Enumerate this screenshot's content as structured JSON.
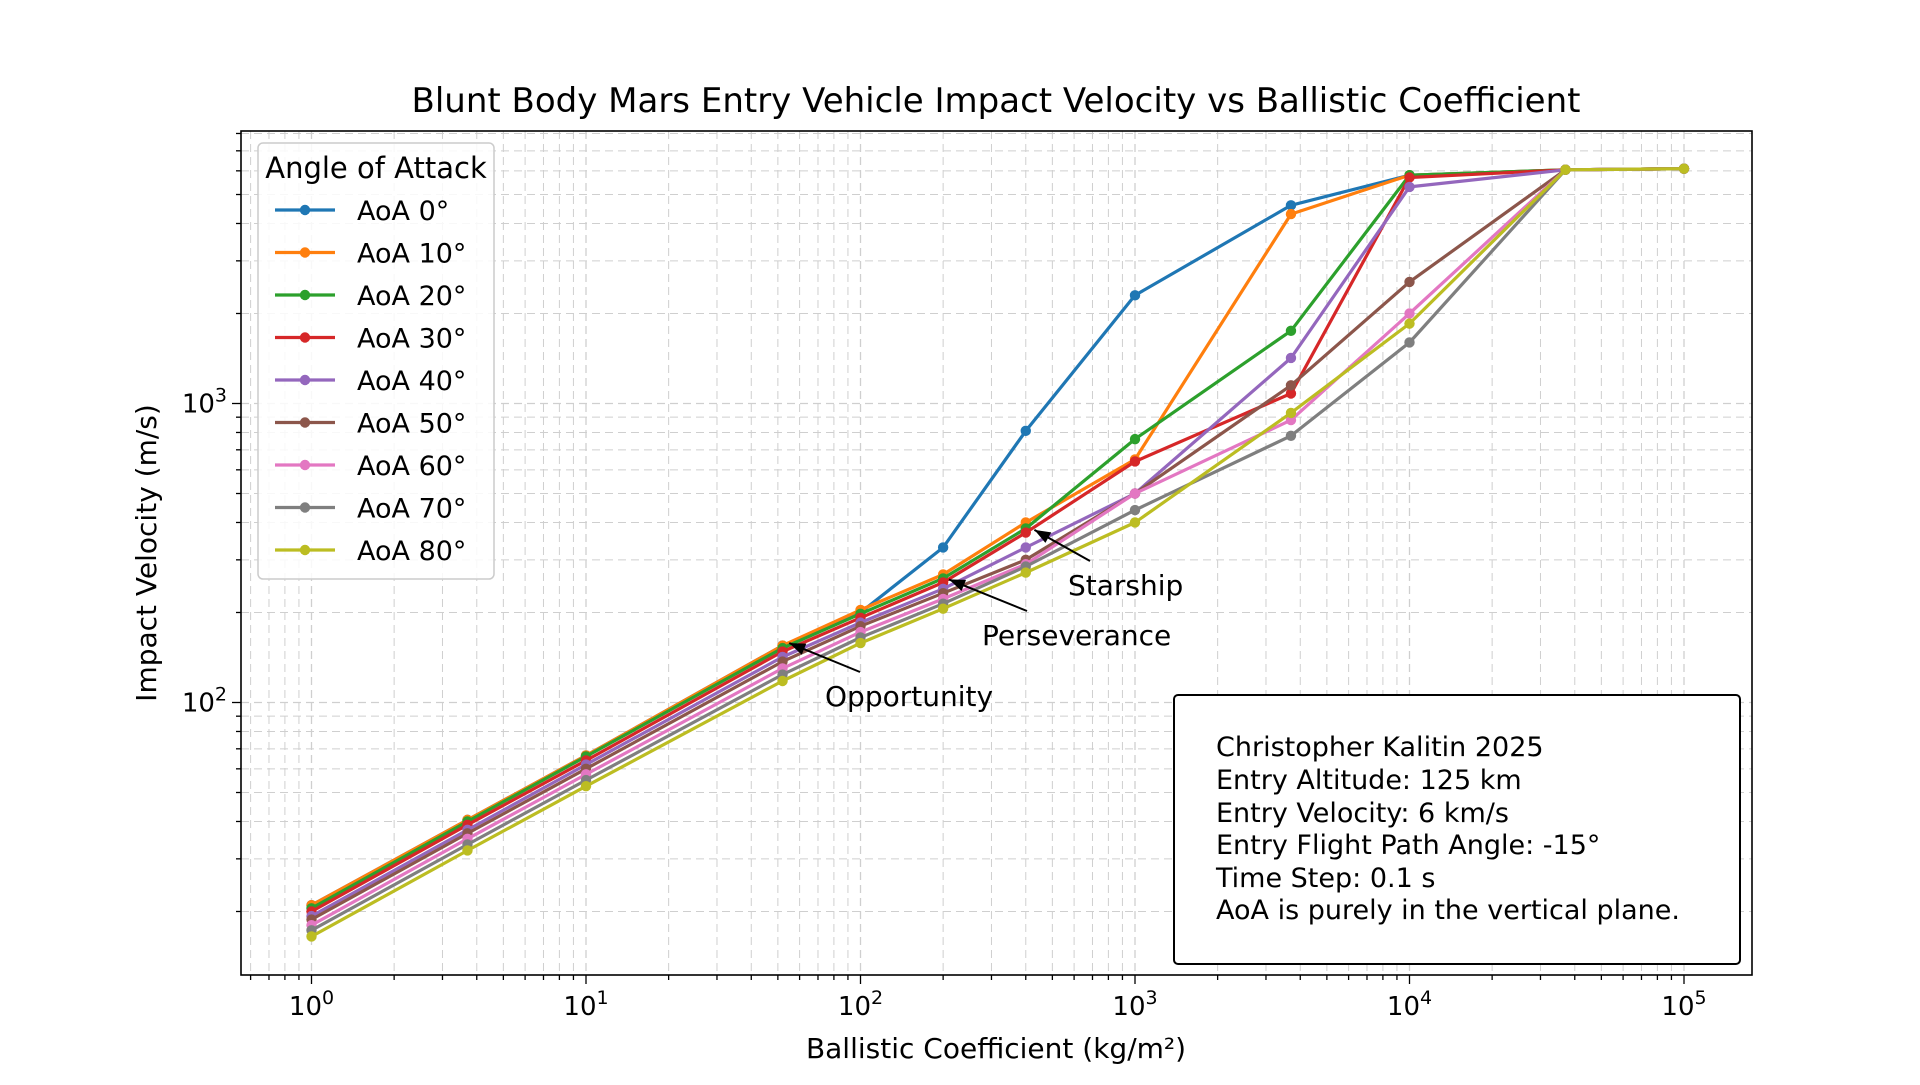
{
  "chart_data": {
    "type": "line",
    "title": "Blunt Body Mars Entry Vehicle Impact Velocity vs Ballistic Coefficient",
    "xlabel": "Ballistic Coefficient (kg/m²)",
    "ylabel": "Impact Velocity (m/s)",
    "xscale": "log",
    "yscale": "log",
    "xlim": [
      0.6,
      160000
    ],
    "ylim": [
      13,
      8500
    ],
    "grid": "major and minor, dashed",
    "x_tick_labels": [
      "10^0",
      "10^1",
      "10^2",
      "10^3",
      "10^4",
      "10^5"
    ],
    "y_tick_labels": [
      "10^2",
      "10^3"
    ],
    "x": [
      1,
      3.7,
      10,
      52,
      100,
      200,
      400,
      1000,
      3700,
      10000,
      37000,
      100000
    ],
    "legend": {
      "title": "Angle of Attack",
      "placement": "upper left"
    },
    "series": [
      {
        "name": "AoA 0°",
        "color": "#1f77b4",
        "values": [
          21,
          40.5,
          66.5,
          155,
          200,
          330,
          810,
          2300,
          4600,
          5800,
          6050,
          6100
        ]
      },
      {
        "name": "AoA 10°",
        "color": "#ff7f0e",
        "values": [
          21,
          40.5,
          66.5,
          155,
          204,
          268,
          400,
          650,
          4300,
          5800,
          6050,
          6100
        ]
      },
      {
        "name": "AoA 20°",
        "color": "#2ca02c",
        "values": [
          20.5,
          40,
          66,
          152,
          198,
          260,
          382,
          760,
          1750,
          5800,
          6050,
          6100
        ]
      },
      {
        "name": "AoA 30°",
        "color": "#d62728",
        "values": [
          20,
          39,
          64,
          148,
          192,
          252,
          370,
          640,
          1080,
          5700,
          6050,
          6100
        ]
      },
      {
        "name": "AoA 40°",
        "color": "#9467bd",
        "values": [
          19.3,
          37.5,
          62,
          142,
          185,
          240,
          330,
          500,
          1420,
          5300,
          6050,
          6100
        ]
      },
      {
        "name": "AoA 50°",
        "color": "#8c564b",
        "values": [
          18.8,
          36.5,
          60,
          137,
          180,
          232,
          300,
          500,
          1150,
          2550,
          6050,
          6100
        ]
      },
      {
        "name": "AoA 60°",
        "color": "#e377c2",
        "values": [
          18,
          35,
          57.5,
          130,
          172,
          222,
          290,
          500,
          880,
          2000,
          6050,
          6100
        ]
      },
      {
        "name": "AoA 70°",
        "color": "#7f7f7f",
        "values": [
          17.3,
          33.5,
          55,
          124,
          165,
          214,
          285,
          440,
          780,
          1600,
          6050,
          6100
        ]
      },
      {
        "name": "AoA 80°",
        "color": "#bcbd22",
        "values": [
          16.5,
          32,
          52.5,
          118,
          158,
          206,
          272,
          400,
          930,
          1850,
          6050,
          6100
        ]
      }
    ],
    "annotations": [
      {
        "text": "Opportunity",
        "point": [
          55,
          158
        ]
      },
      {
        "text": "Perseverance",
        "point": [
          210,
          258
        ]
      },
      {
        "text": "Starship",
        "point": [
          430,
          378
        ]
      }
    ],
    "info_box": [
      "Christopher Kalitin 2025",
      "Entry Altitude: 125 km",
      "Entry Velocity: 6 km/s",
      "Entry Flight Path Angle: -15°",
      "Time Step: 0.1 s",
      "AoA is purely in the vertical plane."
    ]
  }
}
